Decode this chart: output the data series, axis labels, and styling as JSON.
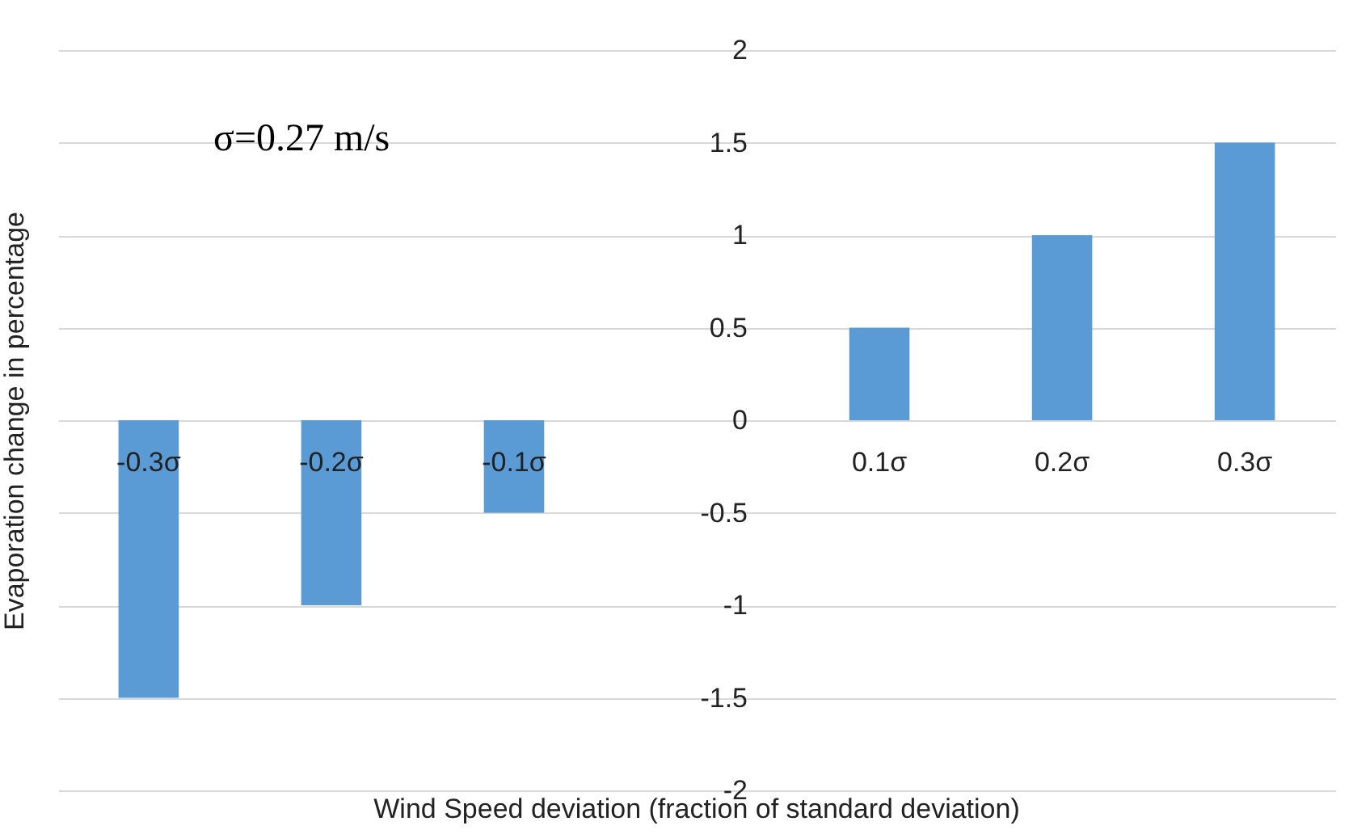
{
  "chart_data": {
    "type": "bar",
    "xlabel": "Wind Speed deviation (fraction of standard deviation)",
    "ylabel": "Evaporation change in percentage",
    "categories": [
      "-0.3σ",
      "-0.2σ",
      "-0.1σ",
      null,
      "0.1σ",
      "0.2σ",
      "0.3σ"
    ],
    "values": [
      -1.5,
      -1,
      -0.5,
      null,
      0.5,
      1,
      1.5
    ],
    "color": "#5b9bd5",
    "ylim": [
      -2,
      2
    ],
    "yticks": [
      -2,
      -1.5,
      -1,
      -0.5,
      0,
      0.5,
      1,
      1.5,
      2
    ],
    "grid": "y",
    "annotations": [
      "σ=0.27 m/s"
    ]
  }
}
